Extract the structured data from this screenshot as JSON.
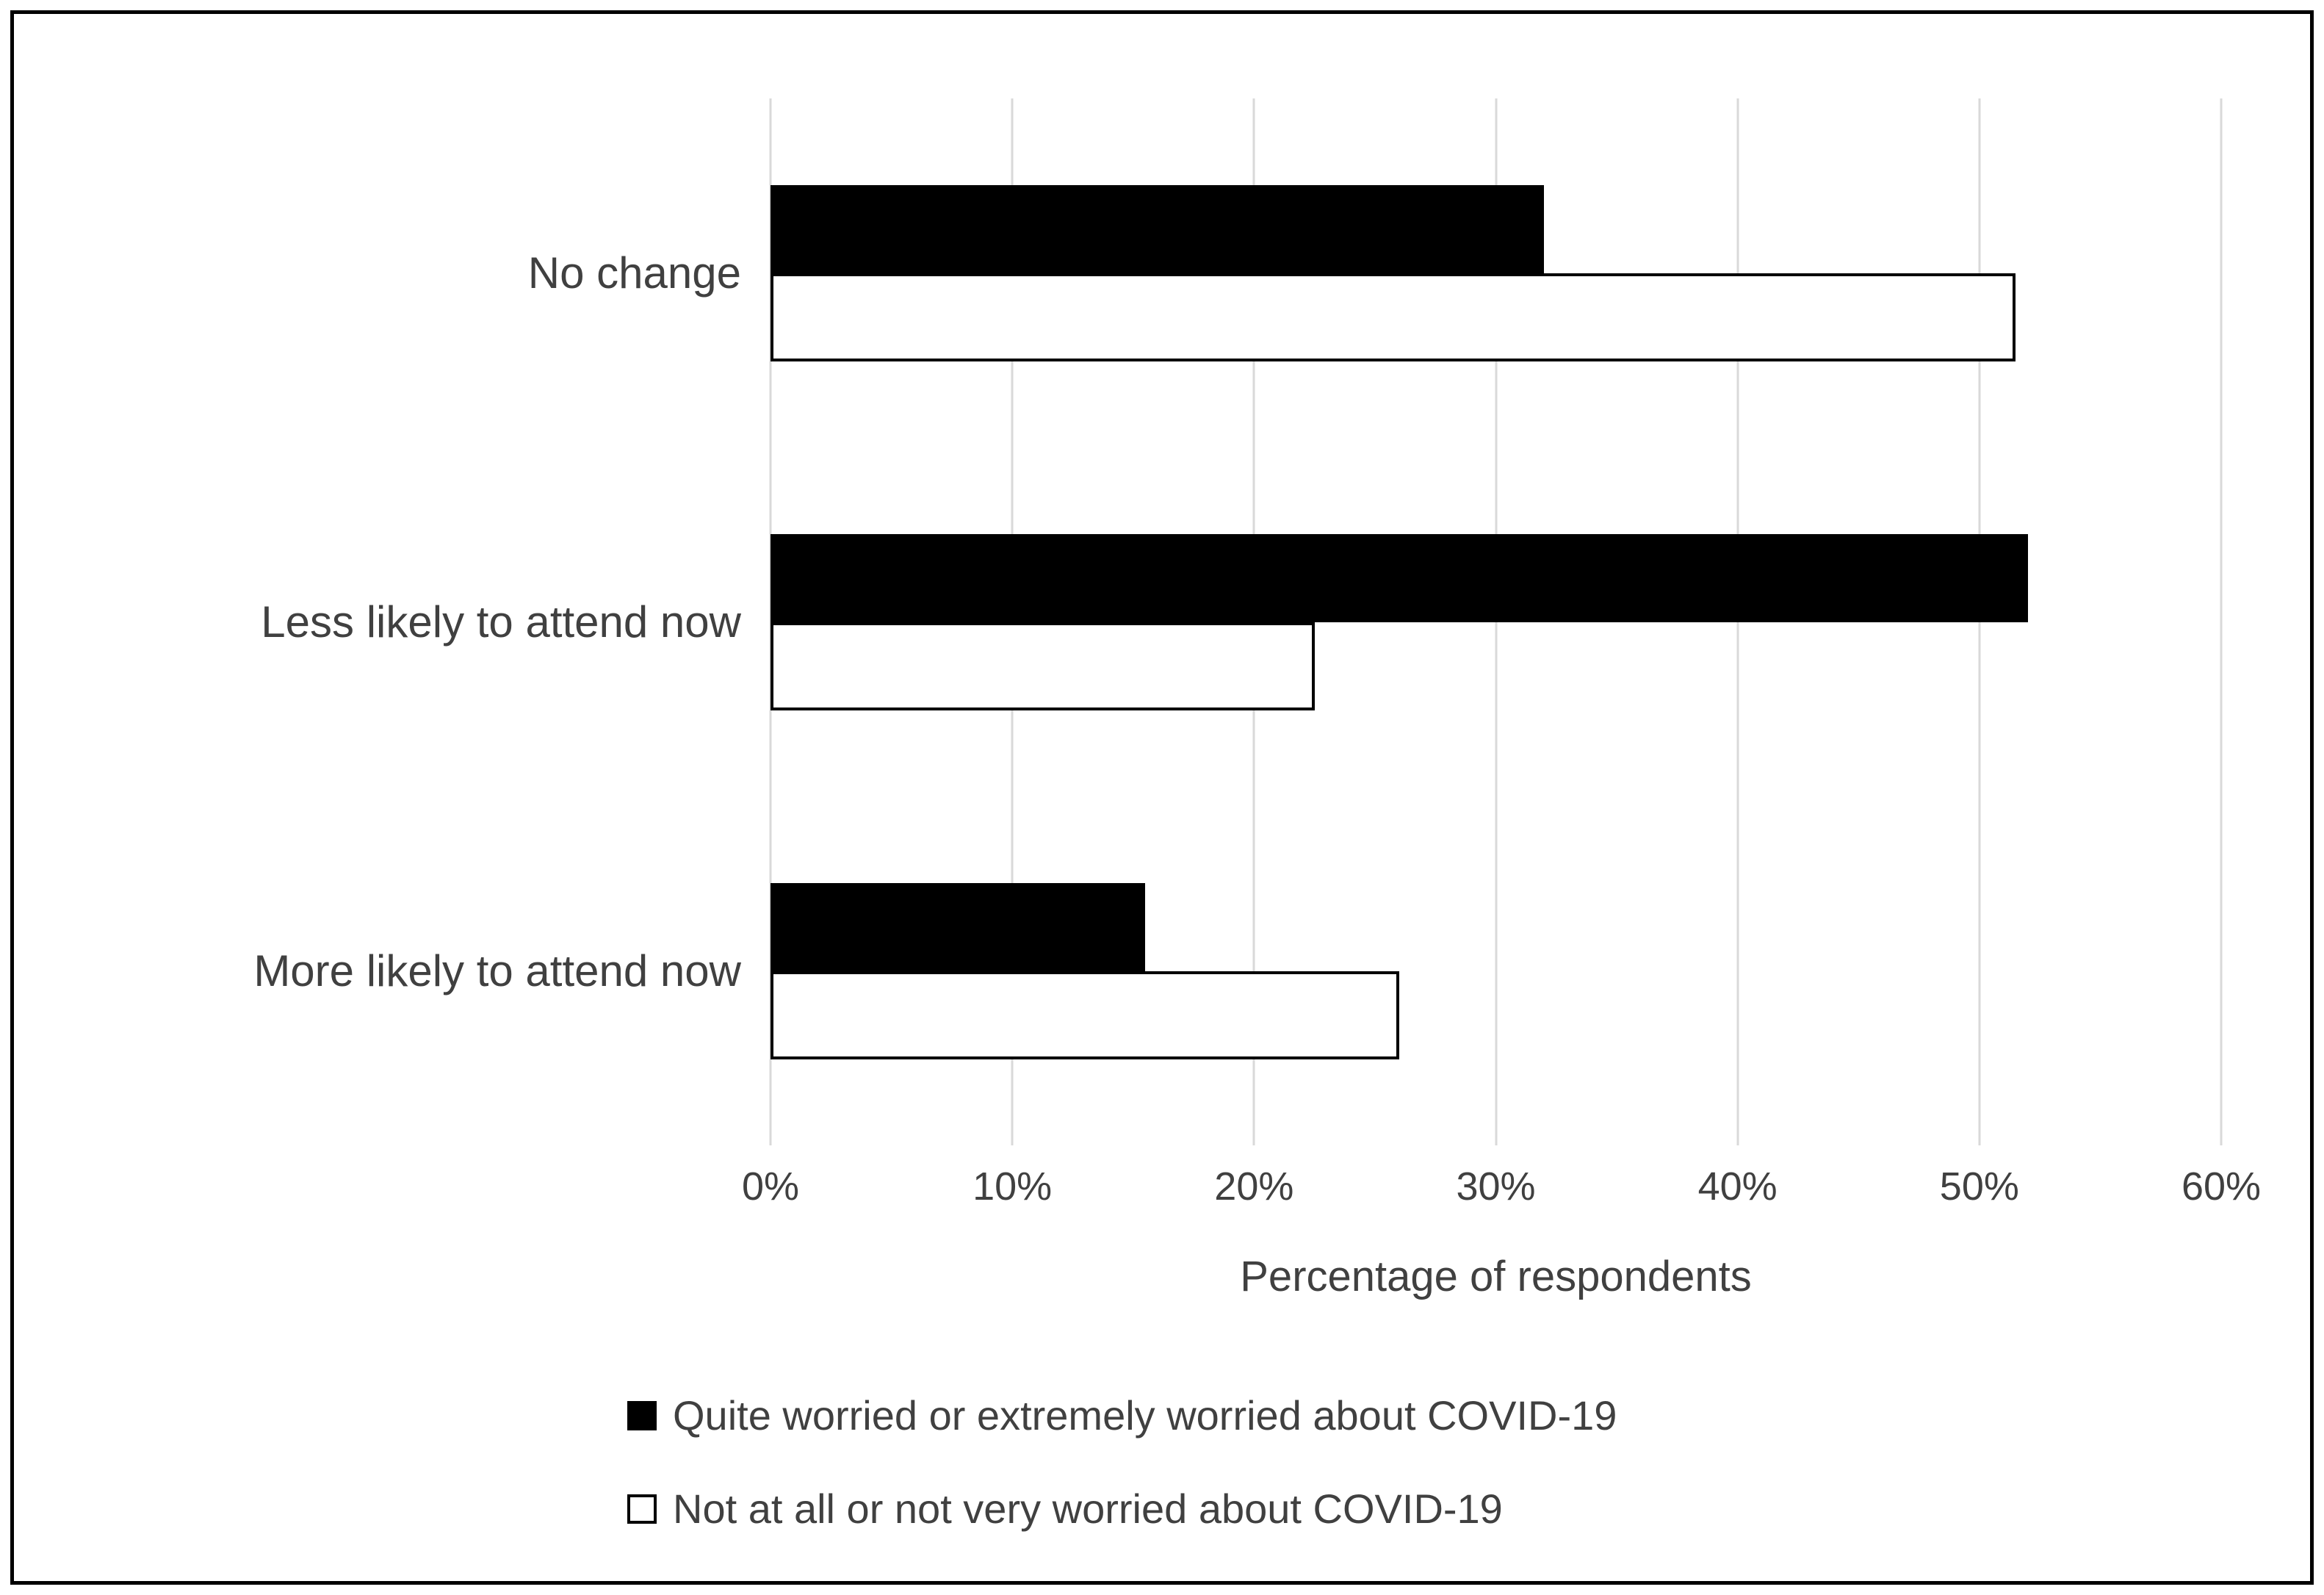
{
  "figure": {
    "background": "#ffffff",
    "border_color": "#000000"
  },
  "chart_data": {
    "type": "bar",
    "orientation": "horizontal",
    "title": "",
    "categories": [
      "No change",
      "Less likely to attend now",
      "More likely to attend now"
    ],
    "series": [
      {
        "name": "Quite worried or extremely worried about COVID-19",
        "fill": "#000000",
        "border": "#000000",
        "values": [
          32,
          52,
          15.5
        ]
      },
      {
        "name": "Not at all or not very worried about COVID-19",
        "fill": "#ffffff",
        "border": "#000000",
        "values": [
          51.5,
          22.5,
          26
        ]
      }
    ],
    "xlabel": "Percentage of respondents",
    "xlim": [
      0,
      60
    ],
    "x_ticks": [
      {
        "value": 0,
        "label": "0%"
      },
      {
        "value": 10,
        "label": "10%"
      },
      {
        "value": 20,
        "label": "20%"
      },
      {
        "value": 30,
        "label": "30%"
      },
      {
        "value": 40,
        "label": "40%"
      },
      {
        "value": 50,
        "label": "50%"
      },
      {
        "value": 60,
        "label": "60%"
      }
    ],
    "grid": "vertical-gridlines",
    "gridline_color": "#d9d9d9",
    "text_color": "#404040",
    "legend_position": "bottom-left"
  }
}
